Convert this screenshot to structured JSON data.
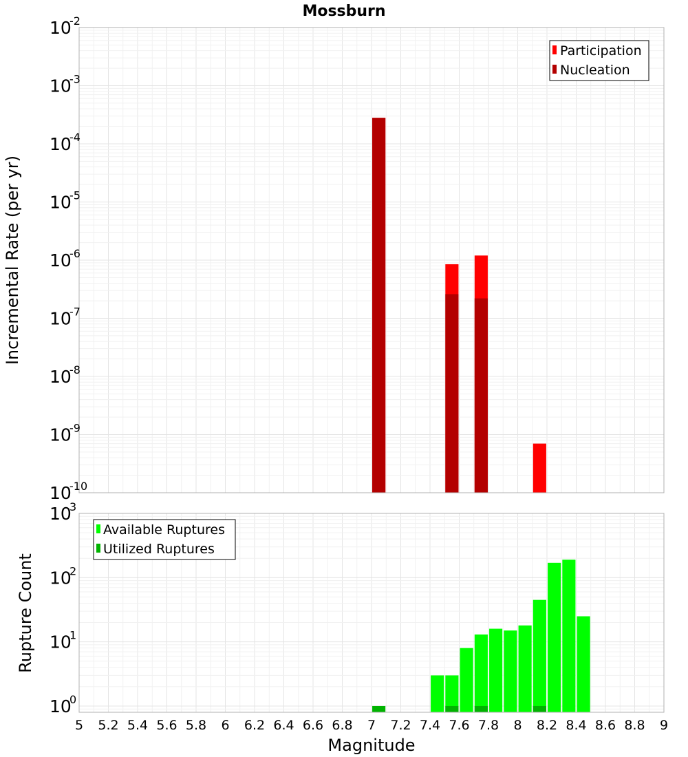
{
  "title": "Mossburn",
  "xlabel": "Magnitude",
  "x_ticks": [
    "5",
    "5.2",
    "5.4",
    "5.6",
    "5.8",
    "6",
    "6.2",
    "6.4",
    "6.6",
    "6.8",
    "7",
    "7.2",
    "7.4",
    "7.6",
    "7.8",
    "8",
    "8.2",
    "8.4",
    "8.6",
    "8.8",
    "9"
  ],
  "chart_data": [
    {
      "type": "bar",
      "ylabel": "Incremental Rate (per yr)",
      "yscale": "log",
      "xlim": [
        5,
        9
      ],
      "ylim": [
        1e-10,
        0.01
      ],
      "bar_width": 0.09,
      "y_tick_exponents": [
        "-10",
        "-9",
        "-8",
        "-7",
        "-6",
        "-5",
        "-4",
        "-3",
        "-2"
      ],
      "legend": {
        "position": "top-right",
        "entries": [
          "Participation",
          "Nucleation"
        ]
      },
      "grid": true,
      "series": [
        {
          "name": "Participation",
          "color": "#ff0000",
          "points": [
            {
              "x": 7.05,
              "y": 0.00028
            },
            {
              "x": 7.55,
              "y": 8.5e-07
            },
            {
              "x": 7.75,
              "y": 1.2e-06
            },
            {
              "x": 8.15,
              "y": 7e-10
            }
          ]
        },
        {
          "name": "Nucleation",
          "color": "#b30000",
          "points": [
            {
              "x": 7.05,
              "y": 0.00028
            },
            {
              "x": 7.55,
              "y": 2.6e-07
            },
            {
              "x": 7.75,
              "y": 2.2e-07
            }
          ]
        }
      ]
    },
    {
      "type": "bar",
      "ylabel": "Rupture Count",
      "yscale": "log",
      "xlim": [
        5,
        9
      ],
      "ylim": [
        0.8,
        1000
      ],
      "bar_width": 0.09,
      "y_tick_exponents": [
        "0",
        "1",
        "2",
        "3"
      ],
      "legend": {
        "position": "top-left",
        "entries": [
          "Available Ruptures",
          "Utilized Ruptures"
        ]
      },
      "grid": true,
      "series": [
        {
          "name": "Available Ruptures",
          "color": "#00ff00",
          "points": [
            {
              "x": 7.45,
              "y": 3
            },
            {
              "x": 7.55,
              "y": 3
            },
            {
              "x": 7.65,
              "y": 8
            },
            {
              "x": 7.75,
              "y": 13
            },
            {
              "x": 7.85,
              "y": 16
            },
            {
              "x": 7.95,
              "y": 15
            },
            {
              "x": 8.05,
              "y": 18
            },
            {
              "x": 8.15,
              "y": 45
            },
            {
              "x": 8.25,
              "y": 170
            },
            {
              "x": 8.35,
              "y": 190
            },
            {
              "x": 8.45,
              "y": 25
            }
          ]
        },
        {
          "name": "Utilized Ruptures",
          "color": "#00b300",
          "points": [
            {
              "x": 7.05,
              "y": 1
            },
            {
              "x": 7.55,
              "y": 1
            },
            {
              "x": 7.75,
              "y": 1
            },
            {
              "x": 8.15,
              "y": 1
            }
          ]
        }
      ]
    }
  ]
}
